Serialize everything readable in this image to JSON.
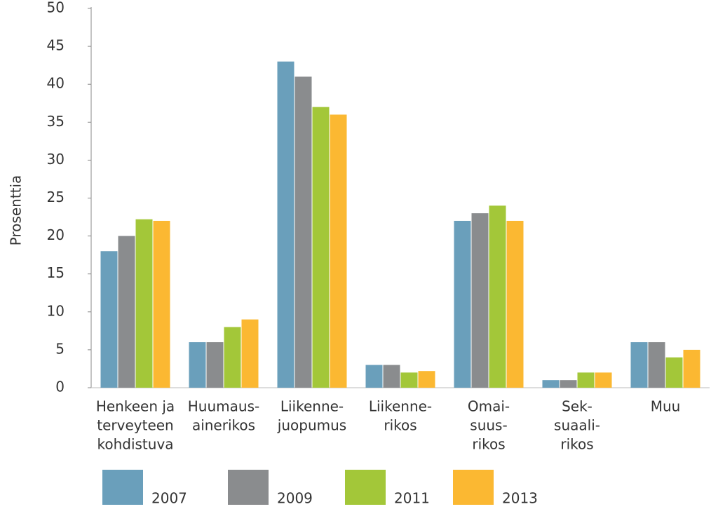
{
  "chart_data": {
    "type": "bar",
    "y_label": "Prosenttia",
    "categories": [
      [
        "Henkeen ja",
        "terveyteen",
        "kohdistuva"
      ],
      [
        "Huumaus-",
        "ainerikos"
      ],
      [
        "Liikenne-",
        "juopumus"
      ],
      [
        "Liikenne-",
        "rikos"
      ],
      [
        "Omai-",
        "suus-",
        "rikos"
      ],
      [
        "Sek-",
        "suaali-",
        "rikos"
      ],
      [
        "Muu"
      ]
    ],
    "series": [
      {
        "name": "2007",
        "color": "#6a9fbb",
        "values": [
          18,
          6,
          43,
          3,
          22,
          1,
          6
        ]
      },
      {
        "name": "2009",
        "color": "#8a8c8e",
        "values": [
          20,
          6,
          41,
          3,
          23,
          1,
          6
        ]
      },
      {
        "name": "2011",
        "color": "#a3c739",
        "values": [
          22.2,
          8,
          37,
          2,
          24,
          2,
          4
        ]
      },
      {
        "name": "2013",
        "color": "#fbb832",
        "values": [
          22,
          9,
          36,
          2.2,
          22,
          2,
          5
        ]
      }
    ],
    "ylim": [
      0,
      50
    ],
    "yticks": [
      0,
      5,
      10,
      15,
      20,
      25,
      30,
      35,
      40,
      45,
      50
    ],
    "grid": false,
    "legend": "bottom"
  }
}
